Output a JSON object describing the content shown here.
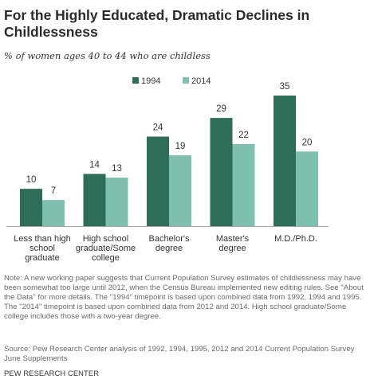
{
  "title": "For the Highly Educated, Dramatic Declines in Childlessness",
  "subtitle": "% of women ages 40 to 44 who are childless",
  "colors": {
    "series_1994": "#2e6e58",
    "series_2014": "#7dc0ad",
    "axis": "#a6a6a6",
    "label": "#333333"
  },
  "chart_data": {
    "type": "bar",
    "categories": [
      [
        "Less than high",
        "school",
        "graduate"
      ],
      [
        "High school",
        "graduate/Some",
        "college"
      ],
      [
        "Bachelor's",
        "degree"
      ],
      [
        "Master's",
        "degree"
      ],
      [
        "M.D./Ph.D."
      ]
    ],
    "series": [
      {
        "name": "1994",
        "values": [
          10,
          14,
          24,
          29,
          35
        ]
      },
      {
        "name": "2014",
        "values": [
          7,
          13,
          19,
          22,
          20
        ]
      }
    ],
    "ylim": [
      0,
      35
    ],
    "legend": "top-center",
    "data_labels": true,
    "grid": false,
    "xlabel": "",
    "ylabel": ""
  },
  "note": "Note: A new working paper suggests that Current Population Survey estimates of childlessness may have been somewhat too large until 2012, when the Census Bureau implemented new editing rules. See \"About the Data\" for more details. The \"1994\" timepoint is based upon combined data from 1992, 1994 and 1995. The \"2014\" timepoint is based upon combined data from 2012 and 2014. High school graduate/Some college includes those with a two-year degree.",
  "source": "Source: Pew Research Center analysis of 1992, 1994, 1995, 2012 and 2014 Current Population Survey June Supplements",
  "organization": "PEW RESEARCH CENTER"
}
